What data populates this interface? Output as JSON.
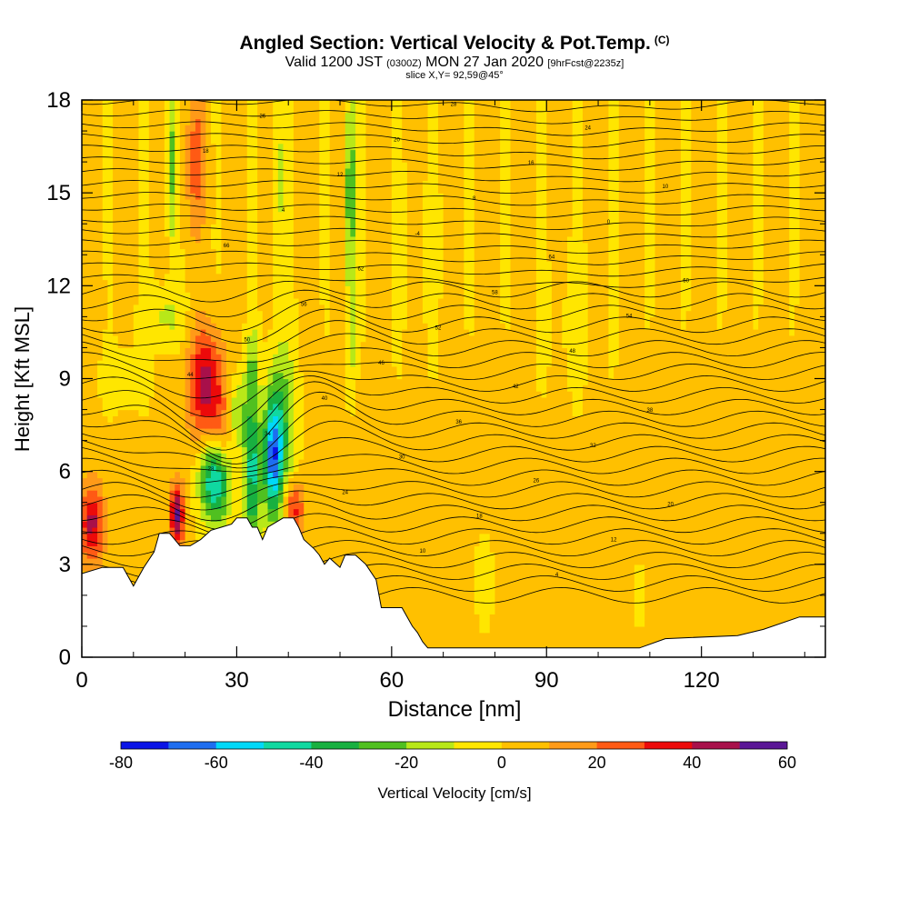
{
  "header": {
    "title": "Angled Section: Vertical Velocity & Pot.Temp.",
    "title_unit": "(C)",
    "valid_prefix": "Valid 1200 JST",
    "valid_utc": "(0300Z)",
    "valid_date": "MON 27 Jan 2020",
    "forecast": "[9hrFcst@2235z]",
    "slice": "slice X,Y= 92,59@45°"
  },
  "chart_data": {
    "type": "heatmap",
    "xlabel": "Distance [nm]",
    "ylabel": "Height [Kft MSL]",
    "xlim": [
      0,
      144
    ],
    "ylim": [
      0,
      18
    ],
    "x_ticks": [
      0,
      30,
      60,
      90,
      120
    ],
    "y_ticks": [
      0,
      3,
      6,
      9,
      12,
      15,
      18
    ],
    "colorbar": {
      "label": "Vertical Velocity [cm/s]",
      "range": [
        -80,
        60
      ],
      "step": 10,
      "tick_values": [
        -80,
        -60,
        -40,
        -20,
        0,
        20,
        40,
        60
      ],
      "colors": [
        "#0a14e6",
        "#1e6ef0",
        "#00d8f8",
        "#10d8a0",
        "#18b040",
        "#50c020",
        "#b8e818",
        "#ffe600",
        "#ffc000",
        "#ff9a18",
        "#ff5a14",
        "#ec0a0a",
        "#a8104a",
        "#5a1696"
      ]
    },
    "background_value": 2,
    "contour_labels": [
      "-4",
      "0",
      "4",
      "8",
      "10",
      "12",
      "16",
      "18",
      "20",
      "24",
      "26",
      "28",
      "30",
      "32",
      "34",
      "36",
      "38",
      "40",
      "42",
      "44",
      "46",
      "48",
      "50",
      "52",
      "54",
      "56",
      "58",
      "60",
      "62",
      "64",
      "66"
    ],
    "terrain_top": [
      [
        0,
        2.7
      ],
      [
        4,
        2.9
      ],
      [
        8,
        2.9
      ],
      [
        10,
        2.3
      ],
      [
        12,
        2.9
      ],
      [
        14,
        3.4
      ],
      [
        15,
        4.0
      ],
      [
        17,
        4.0
      ],
      [
        18,
        3.8
      ],
      [
        19,
        3.6
      ],
      [
        21,
        3.6
      ],
      [
        23,
        3.8
      ],
      [
        25,
        4.1
      ],
      [
        27,
        4.2
      ],
      [
        29,
        4.3
      ],
      [
        30,
        4.5
      ],
      [
        32,
        4.5
      ],
      [
        33,
        4.2
      ],
      [
        34,
        4.2
      ],
      [
        35,
        3.8
      ],
      [
        36,
        4.2
      ],
      [
        37,
        4.3
      ],
      [
        39,
        4.5
      ],
      [
        41,
        4.5
      ],
      [
        42,
        4.2
      ],
      [
        43,
        3.8
      ],
      [
        45,
        3.5
      ],
      [
        46,
        3.3
      ],
      [
        47,
        3.0
      ],
      [
        48,
        3.2
      ],
      [
        50,
        2.9
      ],
      [
        51,
        3.3
      ],
      [
        53,
        3.3
      ],
      [
        55,
        3.0
      ],
      [
        57,
        2.5
      ],
      [
        58,
        1.6
      ],
      [
        62,
        1.6
      ],
      [
        64,
        1.0
      ],
      [
        65,
        0.8
      ],
      [
        66,
        0.5
      ],
      [
        67,
        0.3
      ],
      [
        76,
        0.3
      ],
      [
        108,
        0.3
      ],
      [
        113,
        0.6
      ],
      [
        127,
        0.7
      ],
      [
        132,
        0.9
      ],
      [
        139,
        1.3
      ],
      [
        144,
        1.3
      ]
    ],
    "w_features": [
      {
        "x": 2,
        "y": 4.3,
        "w": 40,
        "rx": 2.5,
        "ry": 1.3
      },
      {
        "x": 18.5,
        "y": 4.6,
        "w": 52,
        "rx": 1.4,
        "ry": 1.0
      },
      {
        "x": 24,
        "y": 8.8,
        "w": 42,
        "rx": 3.5,
        "ry": 1.8
      },
      {
        "x": 27,
        "y": 6.8,
        "w": 25,
        "rx": 2.5,
        "ry": 1.6
      },
      {
        "x": 41,
        "y": 4.8,
        "w": 35,
        "rx": 2.0,
        "ry": 0.9
      },
      {
        "x": 26,
        "y": 5.8,
        "w": -65,
        "rx": 3.0,
        "ry": 1.4
      },
      {
        "x": 33,
        "y": 6.0,
        "w": -45,
        "rx": 1.6,
        "ry": 2.5
      },
      {
        "x": 37,
        "y": 6.5,
        "w": -62,
        "rx": 1.8,
        "ry": 2.0
      },
      {
        "x": 30,
        "y": 8.0,
        "w": -25,
        "rx": 1.8,
        "ry": 1.2
      },
      {
        "x": 39,
        "y": 7.5,
        "w": -25,
        "rx": 2.6,
        "ry": 2.8
      },
      {
        "x": 33,
        "y": 9.5,
        "w": -18,
        "rx": 1.2,
        "ry": 1.3
      },
      {
        "x": 52,
        "y": 15,
        "w": -35,
        "rx": 0.9,
        "ry": 3.5
      },
      {
        "x": 52,
        "y": 9.8,
        "w": -15,
        "rx": 0.8,
        "ry": 1.5
      },
      {
        "x": 17.5,
        "y": 16,
        "w": -25,
        "rx": 1.0,
        "ry": 2.8
      },
      {
        "x": 38,
        "y": 15.5,
        "w": -18,
        "rx": 0.9,
        "ry": 3.0
      },
      {
        "x": 22,
        "y": 16,
        "w": 22,
        "rx": 2.0,
        "ry": 2.2
      },
      {
        "x": 16,
        "y": 11,
        "w": -15,
        "rx": 4.0,
        "ry": 1.0
      },
      {
        "x": 8,
        "y": 9.0,
        "w": -12,
        "rx": 4.0,
        "ry": 0.9
      },
      {
        "x": 108,
        "y": 2.0,
        "w": -12,
        "rx": 1.0,
        "ry": 0.8
      },
      {
        "x": 78,
        "y": 2.5,
        "w": -5,
        "rx": 2.0,
        "ry": 1.8
      },
      {
        "x": 95,
        "y": 11,
        "w": -4,
        "rx": 6.0,
        "ry": 2.5
      },
      {
        "x": 65,
        "y": 13,
        "w": -3,
        "rx": 6.0,
        "ry": 3.0
      }
    ]
  }
}
